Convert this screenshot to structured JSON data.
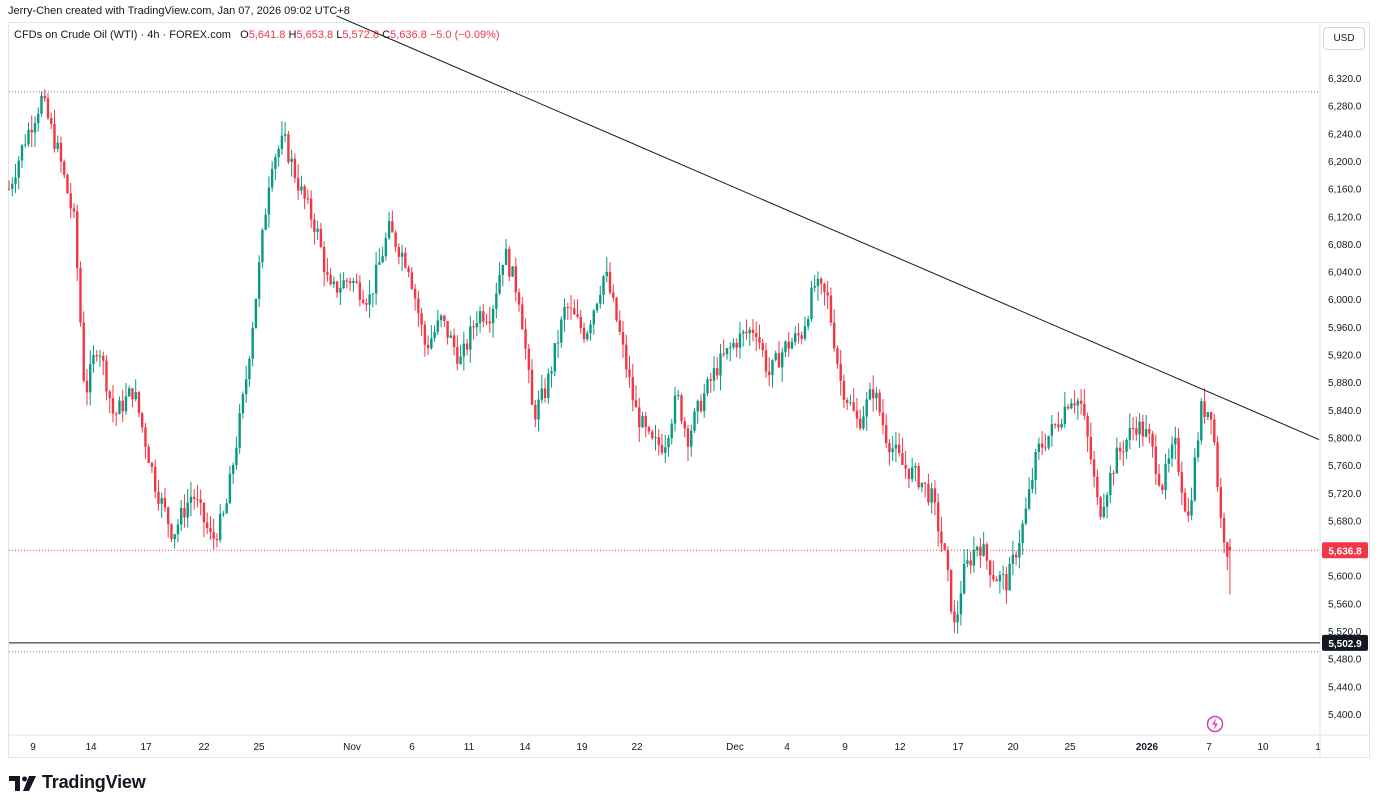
{
  "header": {
    "credit": "Jerry-Chen created with TradingView.com, Jan 07, 2026 09:02 UTC+8"
  },
  "legend": {
    "symbol": "CFDs on Crude Oil (WTI) · 4h · FOREX.com",
    "o_label": "O",
    "o_value": "5,641.8",
    "h_label": "H",
    "h_value": "5,653.8",
    "l_label": "L",
    "l_value": "5,572.8",
    "c_label": "C",
    "c_value": "5,636.8",
    "change": "−5.0 (−0.09%)"
  },
  "currency_button": "USD",
  "footer": {
    "brand": "TradingView",
    "logo_icon": "tradingview-logo-icon"
  },
  "alert_icon": "lightning-bolt-icon",
  "colors": {
    "up": "#089981",
    "down": "#f23645",
    "text": "#131722",
    "grid": "#e0e3eb"
  },
  "chart_data": {
    "type": "candlestick",
    "title": "CFDs on Crude Oil (WTI) · 4h · FOREX.com",
    "ylabel": "USD",
    "ylim": [
      5360,
      6400
    ],
    "y_ticks": [
      "6,320.0",
      "6,280.0",
      "6,240.0",
      "6,200.0",
      "6,160.0",
      "6,120.0",
      "6,080.0",
      "6,040.0",
      "6,000.0",
      "5,960.0",
      "5,920.0",
      "5,880.0",
      "5,840.0",
      "5,800.0",
      "5,760.0",
      "5,720.0",
      "5,680.0",
      "5,640.0",
      "5,600.0",
      "5,560.0",
      "5,520.0",
      "5,480.0",
      "5,440.0",
      "5,400.0"
    ],
    "x_ticks": [
      {
        "label": "9",
        "bold": false
      },
      {
        "label": "14",
        "bold": false
      },
      {
        "label": "17",
        "bold": false
      },
      {
        "label": "22",
        "bold": false
      },
      {
        "label": "25",
        "bold": false
      },
      {
        "label": "Nov",
        "bold": false
      },
      {
        "label": "6",
        "bold": false
      },
      {
        "label": "11",
        "bold": false
      },
      {
        "label": "14",
        "bold": false
      },
      {
        "label": "19",
        "bold": false
      },
      {
        "label": "22",
        "bold": false
      },
      {
        "label": "Dec",
        "bold": false
      },
      {
        "label": "4",
        "bold": false
      },
      {
        "label": "9",
        "bold": false
      },
      {
        "label": "12",
        "bold": false
      },
      {
        "label": "17",
        "bold": false
      },
      {
        "label": "20",
        "bold": false
      },
      {
        "label": "25",
        "bold": false
      },
      {
        "label": "2026",
        "bold": true
      },
      {
        "label": "7",
        "bold": false
      },
      {
        "label": "10",
        "bold": false
      },
      {
        "label": "1",
        "bold": false
      }
    ],
    "last_price": {
      "value": 5636.8,
      "label": "5,636.8"
    },
    "support_line": {
      "value": 5502.9,
      "label": "5,502.9"
    },
    "dotted_levels": [
      6300.0,
      5490.0
    ],
    "trendline": {
      "from": {
        "x": 0.25,
        "y": 6410
      },
      "to": {
        "x": 1.0,
        "y": 5797
      }
    },
    "path_nodes": [
      [
        0,
        6160
      ],
      [
        0.012,
        6230
      ],
      [
        0.025,
        6290
      ],
      [
        0.038,
        6210
      ],
      [
        0.05,
        6110
      ],
      [
        0.058,
        5860
      ],
      [
        0.068,
        5940
      ],
      [
        0.08,
        5830
      ],
      [
        0.095,
        5870
      ],
      [
        0.112,
        5730
      ],
      [
        0.125,
        5660
      ],
      [
        0.14,
        5720
      ],
      [
        0.155,
        5650
      ],
      [
        0.165,
        5690
      ],
      [
        0.18,
        5870
      ],
      [
        0.19,
        6030
      ],
      [
        0.2,
        6200
      ],
      [
        0.21,
        6230
      ],
      [
        0.222,
        6160
      ],
      [
        0.235,
        6100
      ],
      [
        0.245,
        6010
      ],
      [
        0.26,
        6030
      ],
      [
        0.275,
        6000
      ],
      [
        0.29,
        6100
      ],
      [
        0.305,
        6050
      ],
      [
        0.318,
        5930
      ],
      [
        0.33,
        5970
      ],
      [
        0.345,
        5910
      ],
      [
        0.358,
        5980
      ],
      [
        0.368,
        5980
      ],
      [
        0.378,
        6070
      ],
      [
        0.39,
        6000
      ],
      [
        0.4,
        5830
      ],
      [
        0.41,
        5870
      ],
      [
        0.425,
        5990
      ],
      [
        0.44,
        5950
      ],
      [
        0.455,
        6040
      ],
      [
        0.465,
        5960
      ],
      [
        0.478,
        5840
      ],
      [
        0.49,
        5790
      ],
      [
        0.5,
        5790
      ],
      [
        0.51,
        5860
      ],
      [
        0.518,
        5800
      ],
      [
        0.528,
        5850
      ],
      [
        0.54,
        5900
      ],
      [
        0.555,
        5940
      ],
      [
        0.57,
        5960
      ],
      [
        0.58,
        5890
      ],
      [
        0.592,
        5930
      ],
      [
        0.605,
        5950
      ],
      [
        0.615,
        6020
      ],
      [
        0.625,
        6000
      ],
      [
        0.635,
        5880
      ],
      [
        0.648,
        5820
      ],
      [
        0.66,
        5870
      ],
      [
        0.67,
        5800
      ],
      [
        0.682,
        5760
      ],
      [
        0.695,
        5740
      ],
      [
        0.705,
        5710
      ],
      [
        0.715,
        5620
      ],
      [
        0.722,
        5520
      ],
      [
        0.728,
        5600
      ],
      [
        0.74,
        5650
      ],
      [
        0.752,
        5600
      ],
      [
        0.762,
        5590
      ],
      [
        0.775,
        5680
      ],
      [
        0.785,
        5780
      ],
      [
        0.8,
        5820
      ],
      [
        0.81,
        5860
      ],
      [
        0.818,
        5850
      ],
      [
        0.825,
        5780
      ],
      [
        0.832,
        5690
      ],
      [
        0.845,
        5770
      ],
      [
        0.86,
        5820
      ],
      [
        0.87,
        5800
      ],
      [
        0.88,
        5730
      ],
      [
        0.89,
        5790
      ],
      [
        0.9,
        5680
      ],
      [
        0.91,
        5840
      ],
      [
        0.918,
        5840
      ],
      [
        0.925,
        5680
      ],
      [
        0.93,
        5640
      ]
    ]
  }
}
